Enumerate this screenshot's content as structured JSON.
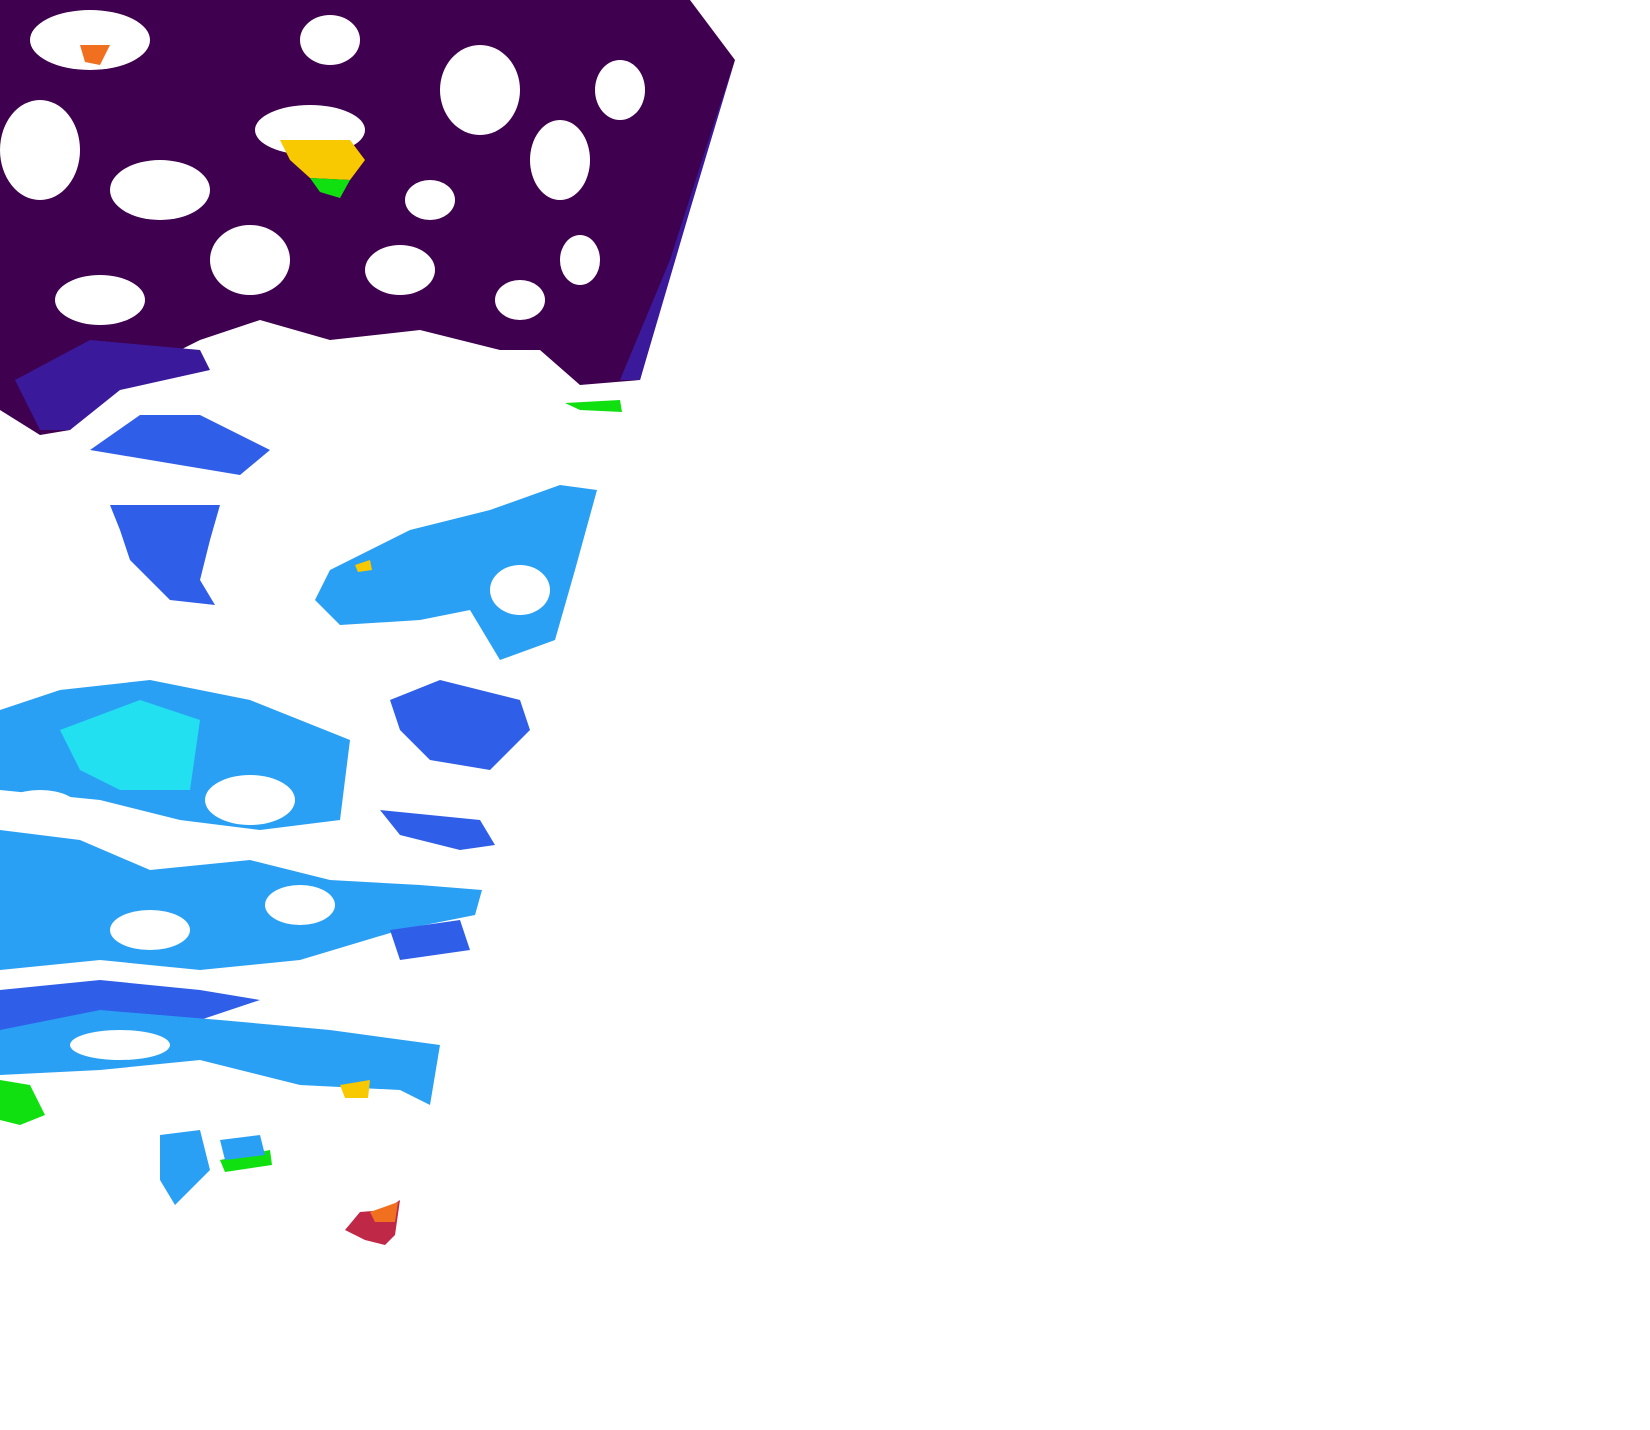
{
  "map": {
    "layer": "satellite-swath-raster",
    "background": "#ffffff",
    "colormap": {
      "very_low": "#400050",
      "low": "#3a1a9a",
      "mid_low": "#2f5ee8",
      "mid": "#2aa0f5",
      "mid_high": "#22e0f0",
      "green": "#10e010",
      "yellow": "#f8c800",
      "orange": "#f07020",
      "red": "#c02848"
    }
  }
}
